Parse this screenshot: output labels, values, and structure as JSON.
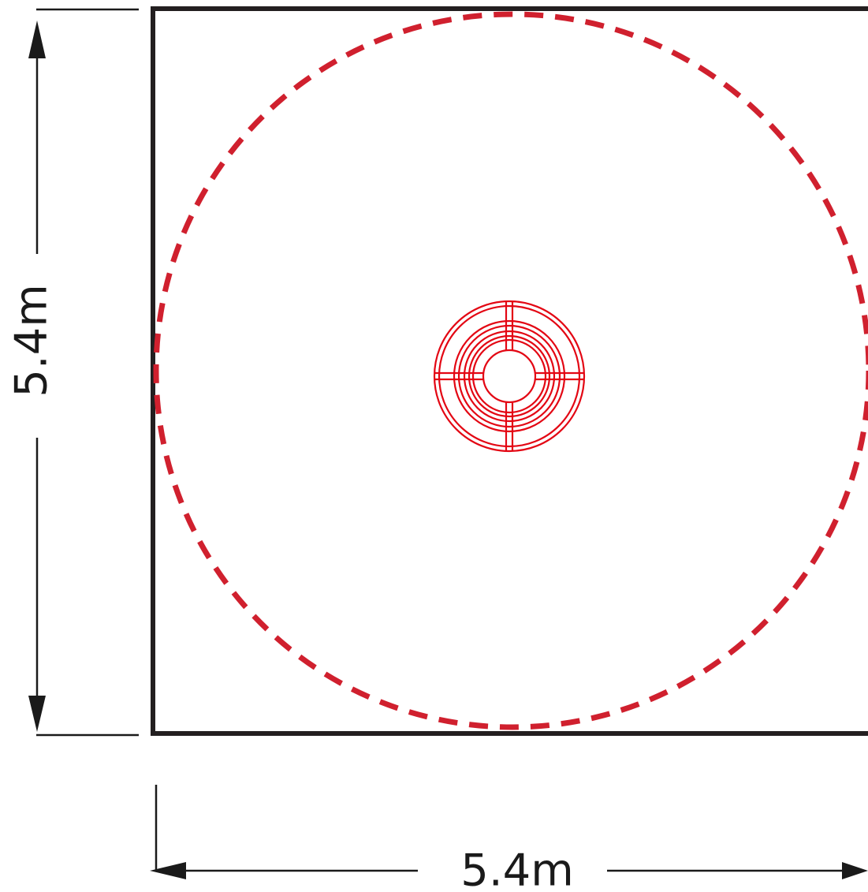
{
  "dimensions": {
    "height_label": "5.4m",
    "width_label": "5.4m"
  },
  "colors": {
    "outline": "#231f20",
    "dashed_circle": "#d0202e",
    "center_icon": "#e30613",
    "dimension_lines": "#1a1a1a"
  },
  "icons": {
    "center": "target-rings-icon"
  }
}
